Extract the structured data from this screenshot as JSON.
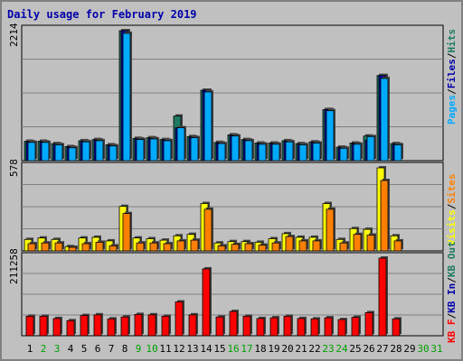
{
  "title": "Daily usage for February 2019",
  "colors": {
    "background": "#c0c0c0",
    "title": "#0000aa",
    "pages": "#00aaff",
    "files": "#0000aa",
    "hits": "#1e7a60",
    "visits": "#ffff00",
    "sites": "#ff8000",
    "kb_f": "#ff0000",
    "kb_in": "#0000aa",
    "kb_out": "#1e7a60",
    "weekday": "#000000",
    "weekend": "#00a000"
  },
  "chart_data": [
    {
      "type": "bar",
      "panel": "top",
      "y_max_label": "2214",
      "ylim": [
        0,
        2214
      ],
      "legend": [
        {
          "name": "Pages",
          "color": "#00aaff"
        },
        {
          "name": "Files",
          "color": "#0000aa"
        },
        {
          "name": "Hits",
          "color": "#1e7a60"
        }
      ],
      "separator": "/",
      "categories": [
        "1",
        "2",
        "3",
        "4",
        "5",
        "6",
        "7",
        "8",
        "9",
        "10",
        "11",
        "12",
        "13",
        "14",
        "15",
        "16",
        "17",
        "18",
        "19",
        "20",
        "21",
        "22",
        "23",
        "24",
        "25",
        "26",
        "27",
        "28",
        "29",
        "30",
        "31"
      ],
      "weekend_days": [
        "2",
        "3",
        "9",
        "10",
        "16",
        "17",
        "23",
        "24",
        "30",
        "31"
      ],
      "series": [
        {
          "name": "Hits",
          "values": [
            330,
            330,
            290,
            240,
            340,
            360,
            270,
            2214,
            380,
            390,
            360,
            760,
            410,
            1200,
            310,
            440,
            360,
            300,
            300,
            340,
            290,
            320,
            870,
            230,
            300,
            420,
            1450,
            290,
            0,
            0,
            0
          ]
        },
        {
          "name": "Files",
          "values": [
            320,
            320,
            280,
            230,
            330,
            350,
            260,
            2214,
            370,
            380,
            350,
            560,
            400,
            1200,
            300,
            430,
            350,
            290,
            290,
            330,
            280,
            310,
            870,
            220,
            290,
            350,
            1450,
            280,
            0,
            0,
            0
          ]
        },
        {
          "name": "Pages",
          "values": [
            310,
            310,
            270,
            220,
            320,
            340,
            250,
            2170,
            360,
            370,
            340,
            560,
            390,
            1170,
            290,
            420,
            340,
            280,
            280,
            320,
            270,
            300,
            850,
            210,
            280,
            410,
            1400,
            270,
            0,
            0,
            0
          ]
        }
      ]
    },
    {
      "type": "bar",
      "panel": "middle",
      "y_max_label": "578",
      "ylim": [
        0,
        578
      ],
      "legend": [
        {
          "name": "Visits",
          "color": "#ffff00"
        },
        {
          "name": "Sites",
          "color": "#ff8000"
        }
      ],
      "separator": "/",
      "categories": [
        "1",
        "2",
        "3",
        "4",
        "5",
        "6",
        "7",
        "8",
        "9",
        "10",
        "11",
        "12",
        "13",
        "14",
        "15",
        "16",
        "17",
        "18",
        "19",
        "20",
        "21",
        "22",
        "23",
        "24",
        "25",
        "26",
        "27",
        "28",
        "29",
        "30",
        "31"
      ],
      "series": [
        {
          "name": "Visits",
          "values": [
            80,
            90,
            80,
            30,
            90,
            95,
            70,
            310,
            90,
            85,
            75,
            105,
            115,
            330,
            55,
            65,
            65,
            60,
            85,
            120,
            95,
            95,
            330,
            80,
            155,
            150,
            578,
            105,
            0,
            0,
            0
          ]
        },
        {
          "name": "Sites",
          "values": [
            50,
            55,
            55,
            25,
            50,
            60,
            35,
            260,
            55,
            55,
            50,
            70,
            75,
            290,
            35,
            45,
            50,
            40,
            55,
            100,
            70,
            70,
            290,
            55,
            115,
            110,
            490,
            70,
            0,
            0,
            0
          ]
        }
      ]
    },
    {
      "type": "bar",
      "panel": "bottom",
      "y_max_label": "211258",
      "ylim": [
        0,
        211258
      ],
      "legend": [
        {
          "name": "KB F",
          "color": "#ff0000"
        },
        {
          "name": "KB In",
          "color": "#0000aa"
        },
        {
          "name": "KB Out",
          "color": "#1e7a60"
        }
      ],
      "separator": "/",
      "categories": [
        "1",
        "2",
        "3",
        "4",
        "5",
        "6",
        "7",
        "8",
        "9",
        "10",
        "11",
        "12",
        "13",
        "14",
        "15",
        "16",
        "17",
        "18",
        "19",
        "20",
        "21",
        "22",
        "23",
        "24",
        "25",
        "26",
        "27",
        "28",
        "29",
        "30",
        "31"
      ],
      "series": [
        {
          "name": "KB F",
          "values": [
            53000,
            53000,
            47000,
            41000,
            55000,
            57000,
            46000,
            51000,
            58000,
            57000,
            53000,
            92000,
            57000,
            182000,
            51000,
            66000,
            53000,
            47000,
            49000,
            53000,
            47000,
            46000,
            49000,
            44000,
            50000,
            63000,
            211258,
            46000,
            0,
            0,
            0
          ]
        }
      ]
    }
  ]
}
